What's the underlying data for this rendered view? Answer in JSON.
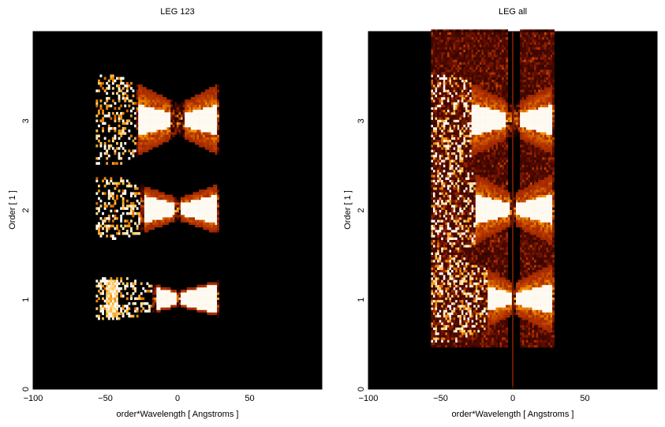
{
  "chart_data": [
    {
      "type": "heatmap",
      "title": "LEG 123",
      "xlabel": "order*Wavelength [ Angstroms ]",
      "ylabel": "Order [ 1 ]",
      "xlim": [
        -100,
        100
      ],
      "ylim": [
        0,
        4
      ],
      "xticks": [
        -100,
        -50,
        0,
        50
      ],
      "yticks": [
        0,
        1,
        2,
        3
      ],
      "xtick_labels": [
        "−100",
        "−50",
        "0",
        "50"
      ],
      "ytick_labels": [
        "0",
        "1",
        "2",
        "3"
      ],
      "background": "#000000",
      "colormap": [
        "#000000",
        "#5a0a00",
        "#b43200",
        "#f08c00",
        "#ffd070",
        "#ffffff"
      ],
      "grid": false,
      "features": [
        {
          "order": 3,
          "x_min": -57,
          "x_max": 28,
          "y_halfwidth": 0.5,
          "bright_core": [
            [
              -28,
              -5
            ],
            [
              4,
              27
            ]
          ],
          "scatter_from": -57,
          "scatter_to": -30
        },
        {
          "order": 2,
          "x_min": -57,
          "x_max": 28,
          "y_halfwidth": 0.35,
          "bright_core": [
            [
              -24,
              -3
            ],
            [
              2,
              26
            ]
          ],
          "scatter_from": -57,
          "scatter_to": -26
        },
        {
          "order": 1,
          "x_min": -57,
          "x_max": 28,
          "y_halfwidth": 0.25,
          "bright_core": [
            [
              -16,
              -1
            ],
            [
              1,
              26
            ]
          ],
          "scatter_from": -57,
          "scatter_to": -18,
          "side_blob": [
            -50,
            -42
          ]
        }
      ]
    },
    {
      "type": "heatmap",
      "title": "LEG all",
      "xlabel": "order*Wavelength [ Angstroms ]",
      "ylabel": "Order [ 1 ]",
      "xlim": [
        -100,
        100
      ],
      "ylim": [
        0,
        4
      ],
      "xticks": [
        -100,
        -50,
        0,
        50
      ],
      "yticks": [
        0,
        1,
        2,
        3
      ],
      "xtick_labels": [
        "−100",
        "−50",
        "0",
        "50"
      ],
      "ytick_labels": [
        "0",
        "1",
        "2",
        "3"
      ],
      "background": "#000000",
      "colormap": [
        "#000000",
        "#5a0a00",
        "#b43200",
        "#f08c00",
        "#ffd070",
        "#ffffff"
      ],
      "grid": false,
      "features": [
        {
          "order": 3,
          "x_min": -57,
          "x_max": 28,
          "y_halfwidth": 0.5,
          "bright_core": [
            [
              -30,
              -5
            ],
            [
              4,
              27
            ]
          ],
          "scatter_from": -57,
          "scatter_to": -30
        },
        {
          "order": 2,
          "x_min": -57,
          "x_max": 28,
          "y_halfwidth": 0.5,
          "bright_core": [
            [
              -26,
              -3
            ],
            [
              2,
              26
            ]
          ],
          "scatter_from": -57,
          "scatter_to": -26
        },
        {
          "order": 1,
          "x_min": -57,
          "x_max": 28,
          "y_halfwidth": 0.5,
          "bright_core": [
            [
              -18,
              -1
            ],
            [
              1,
              26
            ]
          ],
          "scatter_from": -57,
          "scatter_to": -18
        }
      ],
      "continuous_band": {
        "x_min": -57,
        "x_max": 28,
        "y_min": 0.45,
        "y_max": 4.0
      },
      "zero_line": {
        "x": 0,
        "y_min": 0,
        "y_max": 4
      }
    }
  ]
}
